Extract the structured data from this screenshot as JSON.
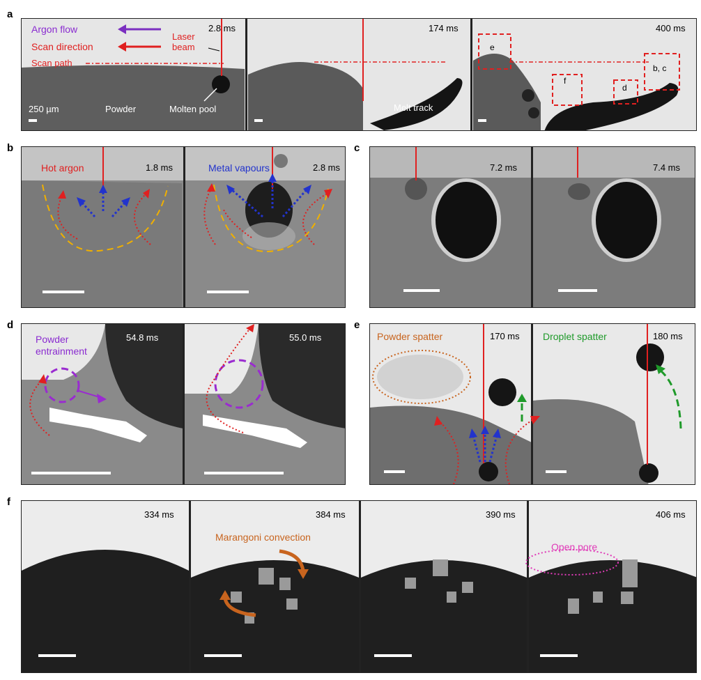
{
  "labels": {
    "a": "a",
    "b": "b",
    "c": "c",
    "d": "d",
    "e": "e",
    "f": "f"
  },
  "panel_a": {
    "times": [
      "2.8 ms",
      "174 ms",
      "400 ms"
    ],
    "argon_flow": "Argon flow",
    "scan_direction": "Scan direction",
    "scan_path": "Scan path",
    "laser_beam": "Laser\nbeam",
    "scale": "250 µm",
    "powder": "Powder",
    "molten_pool": "Molten pool",
    "melt_track": "Melt track",
    "box_labels": [
      "e",
      "f",
      "d",
      "b, c"
    ],
    "colors": {
      "argon": "#7b2fc0",
      "scan": "#e02020"
    }
  },
  "panel_b": {
    "times": [
      "1.8 ms",
      "2.8 ms"
    ],
    "hot_argon": "Hot argon",
    "metal_vapours": "Metal vapours"
  },
  "panel_c": {
    "times": [
      "7.2 ms",
      "7.4 ms"
    ]
  },
  "panel_d": {
    "times": [
      "54.8 ms",
      "55.0 ms"
    ],
    "powder_entrainment": "Powder\nentrainment"
  },
  "panel_e": {
    "times": [
      "170 ms",
      "180 ms"
    ],
    "powder_spatter": "Powder spatter",
    "droplet_spatter": "Droplet spatter"
  },
  "panel_f": {
    "times": [
      "334 ms",
      "384 ms",
      "390 ms",
      "406 ms"
    ],
    "marangoni": "Marangoni convection",
    "open_pore": "Open pore"
  }
}
